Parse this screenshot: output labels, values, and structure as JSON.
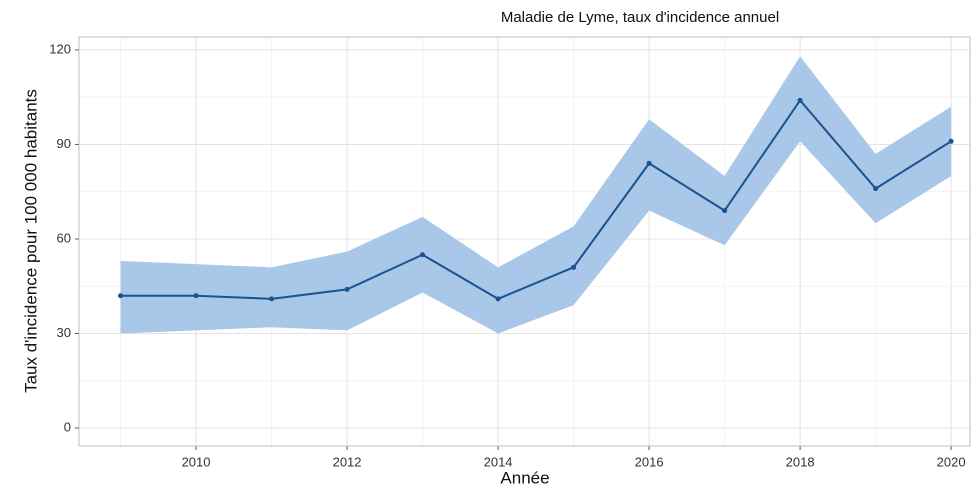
{
  "chart_data": {
    "type": "line",
    "title": "Maladie de Lyme, taux d'incidence annuel",
    "x_label": "Année",
    "y_label": "Taux d'incidence pour 100 000 habitants",
    "x": [
      2009,
      2010,
      2011,
      2012,
      2013,
      2014,
      2015,
      2016,
      2017,
      2018,
      2019,
      2020
    ],
    "values": [
      42,
      42,
      41,
      44,
      55,
      41,
      51,
      84,
      69,
      104,
      76,
      91
    ],
    "upper": [
      53,
      52,
      51,
      56,
      67,
      51,
      64,
      98,
      80,
      118,
      87,
      102
    ],
    "lower": [
      30,
      31,
      32,
      31,
      43,
      30,
      39,
      69,
      58,
      91,
      65,
      80
    ],
    "color": "#1a5390",
    "band_color": "#a9c7e8",
    "xlim": [
      2008.45,
      2020.25
    ],
    "ylim": [
      -5.7,
      124.1
    ],
    "xticks": [
      2010,
      2012,
      2014,
      2016,
      2018,
      2020
    ],
    "yticks": [
      0,
      30,
      60,
      90,
      120
    ],
    "grid": true,
    "minor_grid": true
  }
}
